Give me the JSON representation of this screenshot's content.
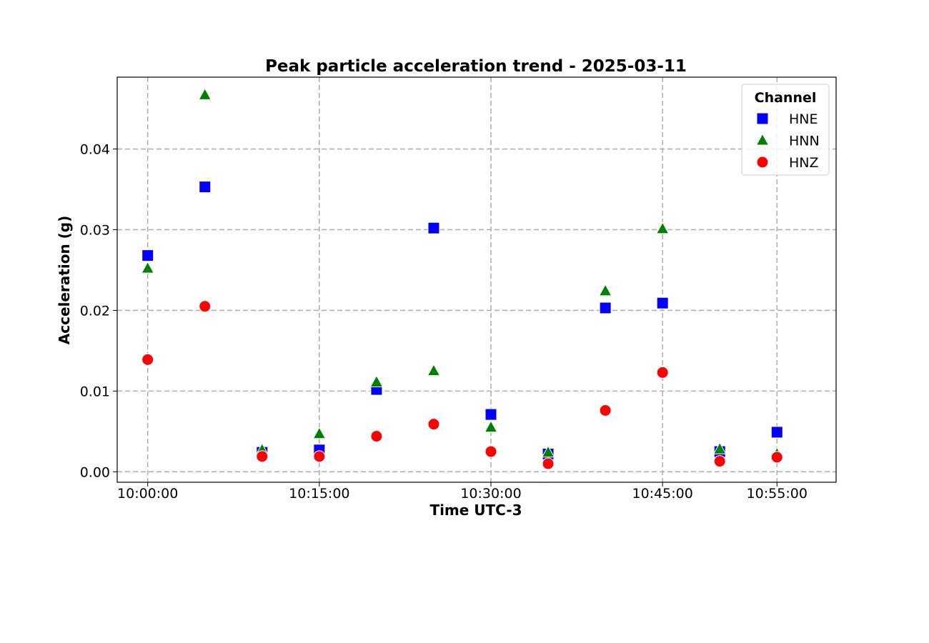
{
  "chart_data": {
    "type": "scatter",
    "title": "Peak particle acceleration trend - 2025-03-11",
    "xlabel": "Time UTC-3",
    "ylabel": "Acceleration (g)",
    "x_unit": "time",
    "xlim": [
      "09:57:20",
      "11:00:10"
    ],
    "ylim": [
      -0.0013,
      0.0489
    ],
    "x_ticks": [
      "10:00:00",
      "10:15:00",
      "10:30:00",
      "10:45:00",
      "10:55:00"
    ],
    "y_ticks": [
      "0.00",
      "0.01",
      "0.02",
      "0.03",
      "0.04"
    ],
    "y_tick_values": [
      0.0,
      0.01,
      0.02,
      0.03,
      0.04
    ],
    "grid": true,
    "legend": {
      "title": "Channel",
      "placement": "top-right"
    },
    "x": [
      "10:00:00",
      "10:05:00",
      "10:10:00",
      "10:15:00",
      "10:20:00",
      "10:25:00",
      "10:30:00",
      "10:35:00",
      "10:40:00",
      "10:45:00",
      "10:50:00",
      "10:55:00"
    ],
    "series": [
      {
        "name": "HNE",
        "marker": "square",
        "color": "#0000ff",
        "values": [
          0.0268,
          0.0353,
          0.0024,
          0.0027,
          0.0102,
          0.0302,
          0.0071,
          0.0022,
          0.0203,
          0.0209,
          0.0025,
          0.0049
        ]
      },
      {
        "name": "HNN",
        "marker": "triangle",
        "color": "#008000",
        "values": [
          0.0252,
          0.0467,
          0.0027,
          0.0047,
          0.0111,
          0.0125,
          0.0055,
          0.0024,
          0.0224,
          0.0301,
          0.0028,
          0.0022
        ]
      },
      {
        "name": "HNZ",
        "marker": "circle",
        "color": "#ff0000",
        "values": [
          0.0139,
          0.0205,
          0.0019,
          0.0019,
          0.0044,
          0.0059,
          0.0025,
          0.001,
          0.0076,
          0.0123,
          0.0013,
          0.0018
        ]
      }
    ]
  }
}
